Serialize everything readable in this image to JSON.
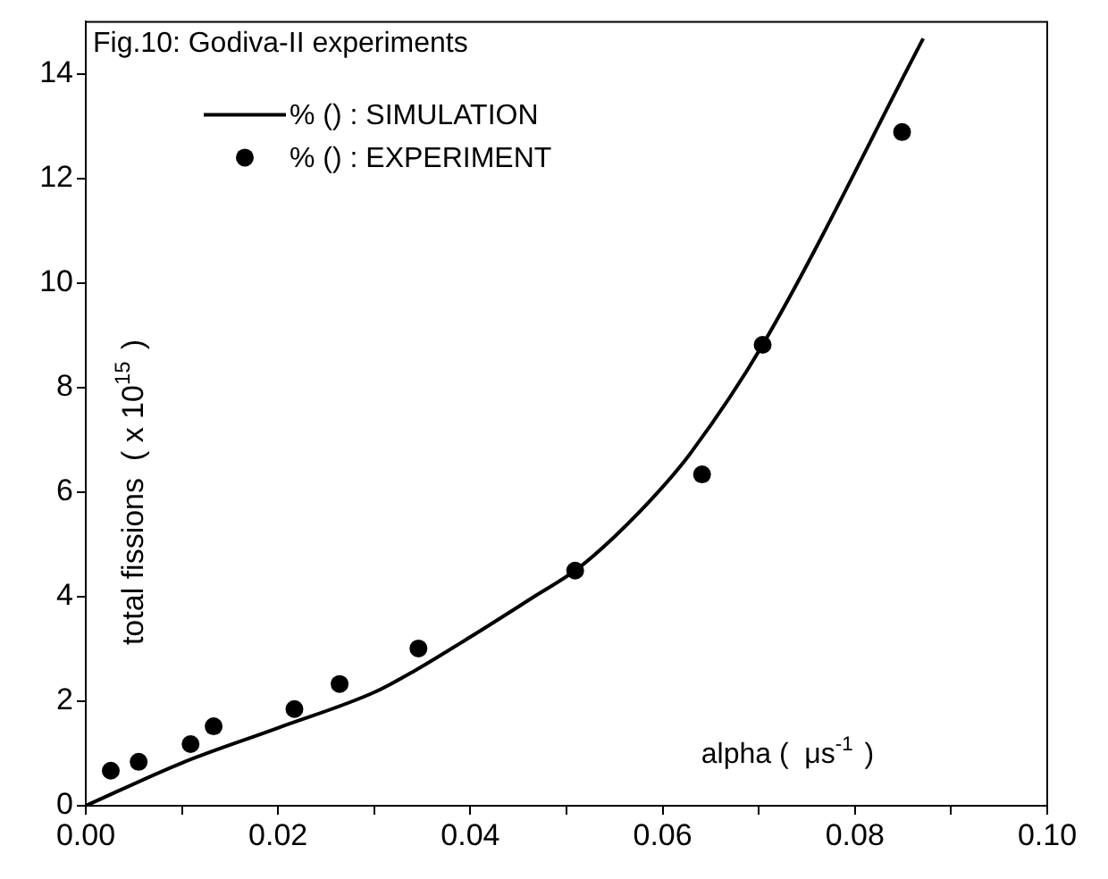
{
  "chart_data": {
    "type": "scatter",
    "title": "Fig.10: Godiva-II experiments",
    "xlabel": "alpha (  μs$^{-1}$ )",
    "ylabel": "total fissions  ( x 10$^{15}$ )",
    "xlim": [
      0,
      0.1
    ],
    "ylim": [
      0,
      15
    ],
    "xticks": [
      {
        "value": 0,
        "label": "0.00"
      },
      {
        "value": 0.01,
        "label": null
      },
      {
        "value": 0.02,
        "label": "0.02"
      },
      {
        "value": 0.03,
        "label": null
      },
      {
        "value": 0.04,
        "label": "0.04"
      },
      {
        "value": 0.05,
        "label": null
      },
      {
        "value": 0.06,
        "label": "0.06"
      },
      {
        "value": 0.07,
        "label": null
      },
      {
        "value": 0.08,
        "label": "0.08"
      },
      {
        "value": 0.09,
        "label": null
      },
      {
        "value": 0.1,
        "label": "0.10"
      }
    ],
    "yticks": [
      0,
      2,
      4,
      6,
      8,
      10,
      12,
      14
    ],
    "grid": false,
    "legend": "top left",
    "series": [
      {
        "name": "% () : SIMULATION",
        "type": "line",
        "color": "#000000",
        "marker": "none",
        "line_style": "solid",
        "x": [
          0,
          0.01,
          0.02,
          0.03,
          0.034,
          0.04,
          0.0468,
          0.0509,
          0.055,
          0.06,
          0.063,
          0.0704,
          0.0871
        ],
        "values": [
          0,
          0.82,
          1.49,
          2.17,
          2.56,
          3.23,
          4.02,
          4.5,
          5.15,
          6.1,
          6.77,
          8.82,
          14.68
        ]
      },
      {
        "name": "% () : EXPERIMENT",
        "type": "scatter",
        "color": "#000000",
        "marker": "circle",
        "x": [
          0.0026,
          0.0055,
          0.0109,
          0.0133,
          0.0217,
          0.0264,
          0.0346,
          0.0509,
          0.0641,
          0.0704,
          0.0849
        ],
        "values": [
          0.67,
          0.84,
          1.18,
          1.52,
          1.85,
          2.33,
          3.01,
          4.5,
          6.34,
          8.82,
          12.89
        ]
      }
    ]
  }
}
